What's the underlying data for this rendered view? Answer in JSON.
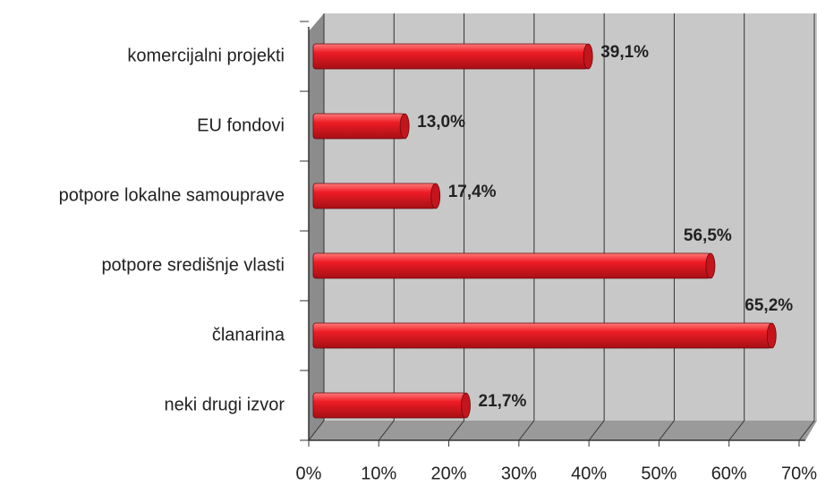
{
  "chart_data": {
    "type": "bar",
    "orientation": "horizontal",
    "categories": [
      "komercijalni projekti",
      "EU fondovi",
      "potpore lokalne samouprave",
      "potpore središnje vlasti",
      "članarina",
      "neki drugi izvor"
    ],
    "values": [
      39.1,
      13.0,
      17.4,
      56.5,
      65.2,
      21.7
    ],
    "value_labels": [
      "39,1%",
      "13,0%",
      "17,4%",
      "56,5%",
      "65,2%",
      "21,7%"
    ],
    "color": "#e8202a",
    "xlim": [
      0,
      70
    ],
    "xticks": [
      {
        "value": 0,
        "label": "0%"
      },
      {
        "value": 10,
        "label": "10%"
      },
      {
        "value": 20,
        "label": "20%"
      },
      {
        "value": 30,
        "label": "30%"
      },
      {
        "value": 40,
        "label": "40%"
      },
      {
        "value": 50,
        "label": "50%"
      },
      {
        "value": 60,
        "label": "60%"
      },
      {
        "value": 70,
        "label": "70%"
      }
    ],
    "grid": true
  }
}
